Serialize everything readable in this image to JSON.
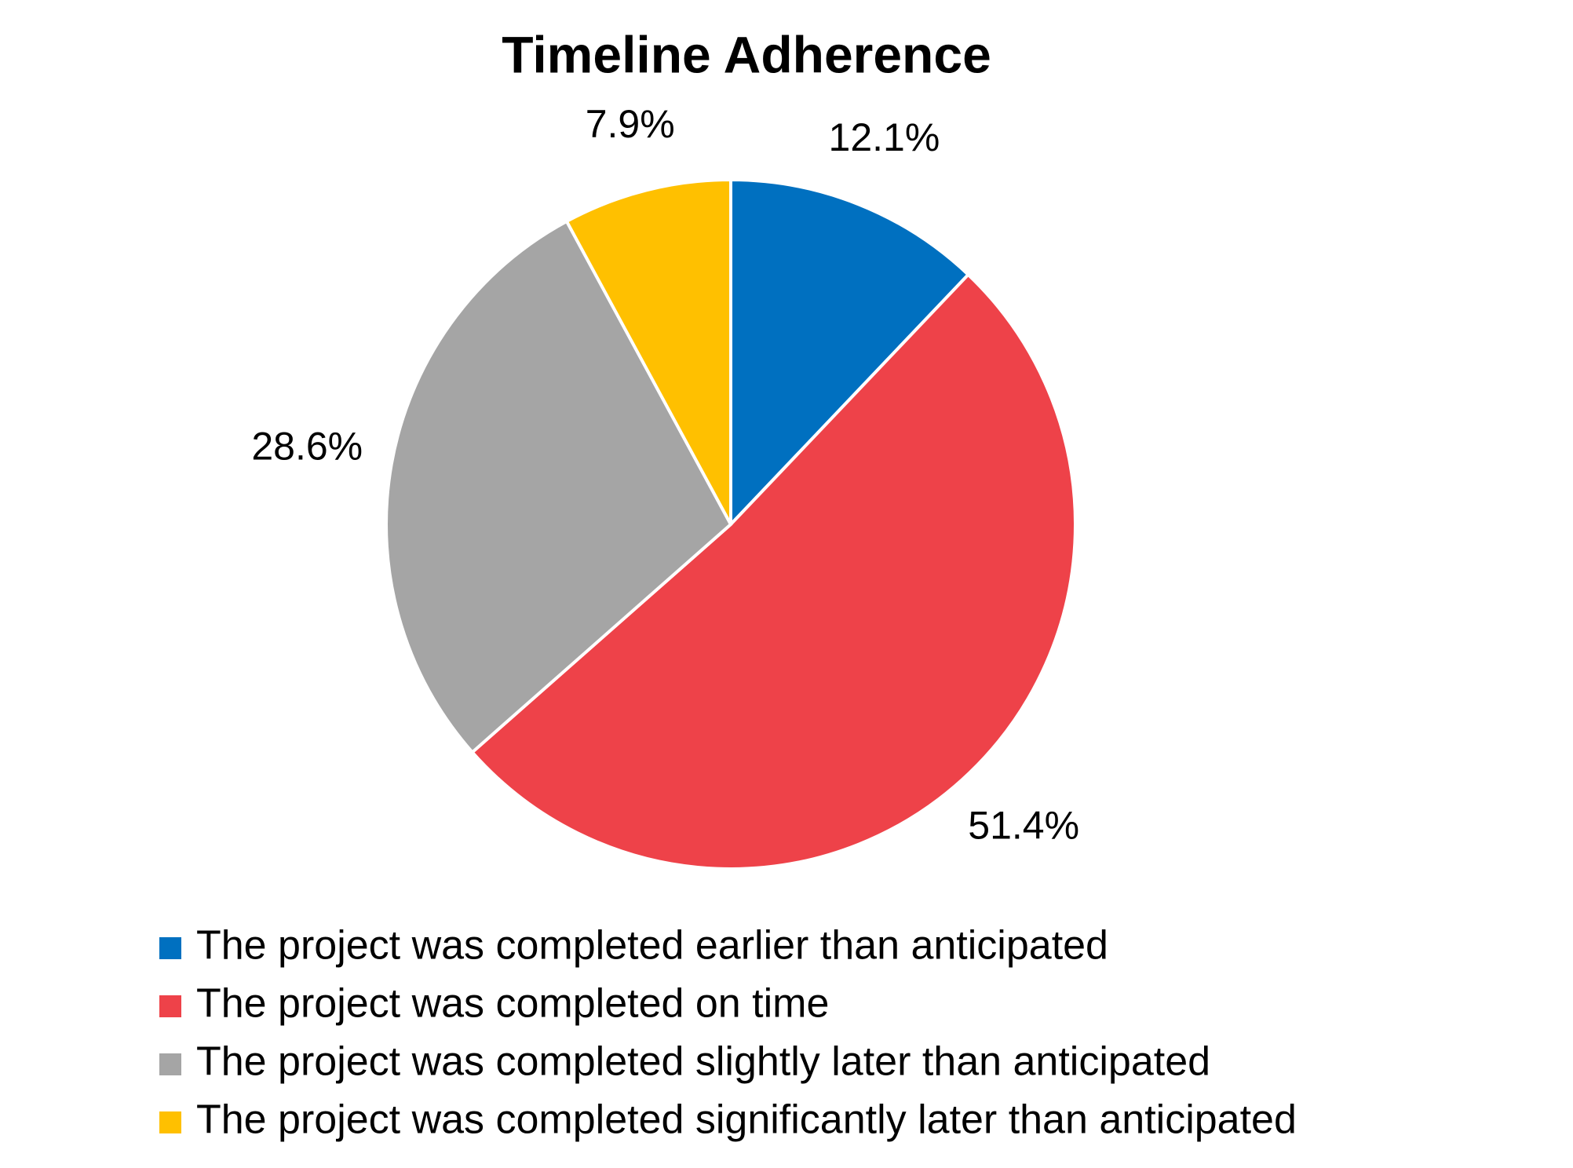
{
  "chart_data": {
    "type": "pie",
    "title": "Timeline Adherence",
    "categories": [
      "The project was completed earlier than anticipated",
      "The project was completed on time",
      "The project was completed slightly later than anticipated",
      "The project was completed significantly later than anticipated"
    ],
    "values": [
      12.1,
      51.4,
      28.6,
      7.9
    ],
    "value_labels": [
      "12.1%",
      "51.4%",
      "28.6%",
      "7.9%"
    ],
    "colors": [
      "#0070c0",
      "#ee4249",
      "#a5a5a5",
      "#ffc000"
    ]
  }
}
